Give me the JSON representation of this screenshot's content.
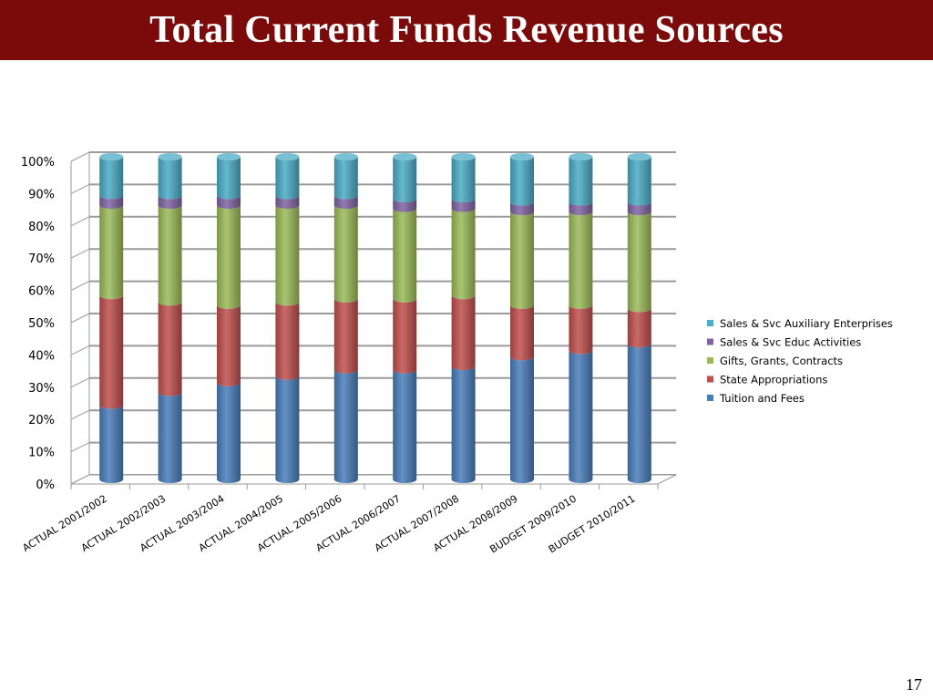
{
  "slide": {
    "title": "Total Current Funds Revenue Sources",
    "page_number": "17"
  },
  "chart_data": {
    "type": "bar",
    "stacked": "percent",
    "categories": [
      "ACTUAL 2001/2002",
      "ACTUAL 2002/2003",
      "ACTUAL 2003/2004",
      "ACTUAL 2004/2005",
      "ACTUAL 2005/2006",
      "ACTUAL 2006/2007",
      "ACTUAL 2007/2008",
      "ACTUAL 2008/2009",
      "BUDGET 2009/2010",
      "BUDGET 2010/2011"
    ],
    "series": [
      {
        "name": "Tuition and Fees",
        "color": "#4a7ebb",
        "values": [
          23,
          27,
          30,
          32,
          34,
          34,
          35,
          38,
          40,
          42
        ]
      },
      {
        "name": "State Appropriations",
        "color": "#c0504d",
        "values": [
          34,
          28,
          24,
          23,
          22,
          22,
          22,
          16,
          14,
          11
        ]
      },
      {
        "name": "Gifts, Grants, Contracts",
        "color": "#9bbb59",
        "values": [
          28,
          30,
          31,
          30,
          29,
          28,
          27,
          29,
          29,
          30
        ]
      },
      {
        "name": "Sales & Svc Educ Activities",
        "color": "#8064a2",
        "values": [
          3,
          3,
          3,
          3,
          3,
          3,
          3,
          3,
          3,
          3
        ]
      },
      {
        "name": "Sales & Svc Auxiliary Enterprises",
        "color": "#4bacc6",
        "values": [
          12,
          12,
          12,
          12,
          12,
          13,
          13,
          14,
          14,
          14
        ]
      }
    ],
    "yticks": [
      "0%",
      "10%",
      "20%",
      "30%",
      "40%",
      "50%",
      "60%",
      "70%",
      "80%",
      "90%",
      "100%"
    ],
    "ylim": [
      0,
      100
    ],
    "grid": true,
    "legend": "right"
  }
}
